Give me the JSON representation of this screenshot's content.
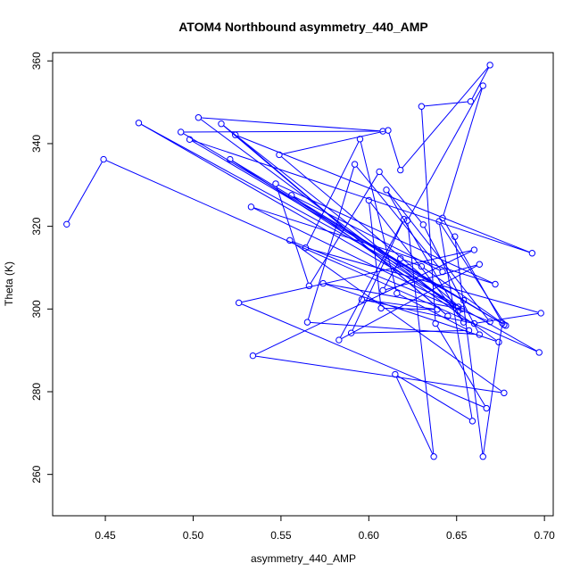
{
  "chart_data": {
    "type": "line",
    "title": "ATOM4 Northbound asymmetry_440_AMP",
    "xlabel": "asymmetry_440_AMP",
    "ylabel": "Theta (K)",
    "xlim": [
      0.42,
      0.705
    ],
    "ylim": [
      250,
      362
    ],
    "xticks": [
      0.45,
      0.5,
      0.55,
      0.6,
      0.65,
      0.7
    ],
    "xtick_labels": [
      "0.45",
      "0.50",
      "0.55",
      "0.60",
      "0.65",
      "0.70"
    ],
    "yticks": [
      260,
      280,
      300,
      320,
      340,
      360
    ],
    "ytick_labels": [
      "260",
      "280",
      "300",
      "320",
      "340",
      "360"
    ],
    "series_color": "#0000ff",
    "marker": "open-circle",
    "grid": false,
    "x": [
      0.428,
      0.449,
      0.697,
      0.469,
      0.654,
      0.493,
      0.608,
      0.503,
      0.651,
      0.516,
      0.645,
      0.524,
      0.693,
      0.498,
      0.677,
      0.521,
      0.651,
      0.533,
      0.672,
      0.547,
      0.566,
      0.606,
      0.631,
      0.663,
      0.565,
      0.592,
      0.642,
      0.556,
      0.674,
      0.574,
      0.653,
      0.549,
      0.611,
      0.618,
      0.669,
      0.658,
      0.63,
      0.638,
      0.667,
      0.526,
      0.66,
      0.534,
      0.677,
      0.555,
      0.669,
      0.61,
      0.654,
      0.6,
      0.607,
      0.639,
      0.596,
      0.66,
      0.698,
      0.564,
      0.595,
      0.616,
      0.657,
      0.59,
      0.62,
      0.583,
      0.663,
      0.608,
      0.618,
      0.63,
      0.678,
      0.64,
      0.659,
      0.615,
      0.637,
      0.622,
      0.665,
      0.642,
      0.676,
      0.665,
      0.649
    ],
    "y": [
      320.5,
      336.2,
      289.5,
      345.0,
      302.1,
      342.8,
      343.0,
      346.3,
      299.6,
      344.8,
      298.3,
      342.1,
      313.5,
      341.0,
      296.2,
      336.2,
      300.5,
      324.7,
      306.0,
      330.3,
      305.6,
      333.2,
      320.4,
      293.8,
      296.8,
      335.0,
      309.0,
      327.5,
      292.0,
      306.2,
      300.0,
      337.3,
      343.2,
      333.6,
      359.0,
      350.2,
      349.0,
      296.5,
      276.0,
      301.5,
      314.3,
      288.7,
      279.7,
      316.6,
      296.9,
      328.8,
      296.8,
      326.3,
      300.2,
      299.9,
      302.3,
      296.5,
      299.0,
      314.8,
      341.1,
      303.8,
      294.8,
      294.2,
      321.7,
      292.5,
      310.8,
      304.5,
      312.2,
      310.3,
      296.0,
      321.2,
      272.9,
      284.2,
      264.3,
      321.4,
      354.0,
      322.0,
      296.6,
      264.3,
      317.5
    ]
  }
}
